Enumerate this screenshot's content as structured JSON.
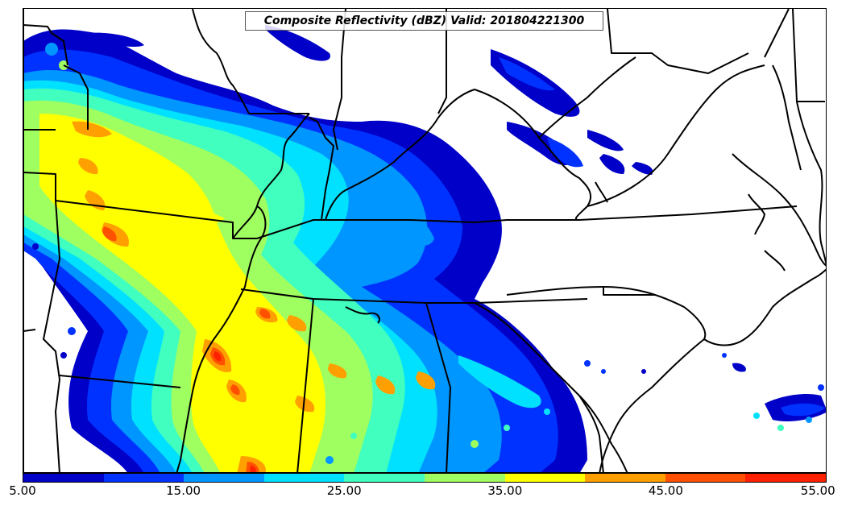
{
  "title": "Composite Reflectivity (dBZ) Valid: 201804221300",
  "colorbar": {
    "colors": [
      "#0000c8",
      "#0032ff",
      "#0096ff",
      "#00e1ff",
      "#40ffbf",
      "#a0ff60",
      "#ffff00",
      "#ffa000",
      "#ff5000",
      "#ff2000",
      "#b40000"
    ],
    "tick_labels": [
      "5.00",
      "15.00",
      "25.00",
      "35.00",
      "45.00",
      "55.00"
    ]
  },
  "legend_range_dbz": [
    5,
    55
  ],
  "field": "Composite Reflectivity",
  "units": "dBZ",
  "valid_time": "201804221300"
}
